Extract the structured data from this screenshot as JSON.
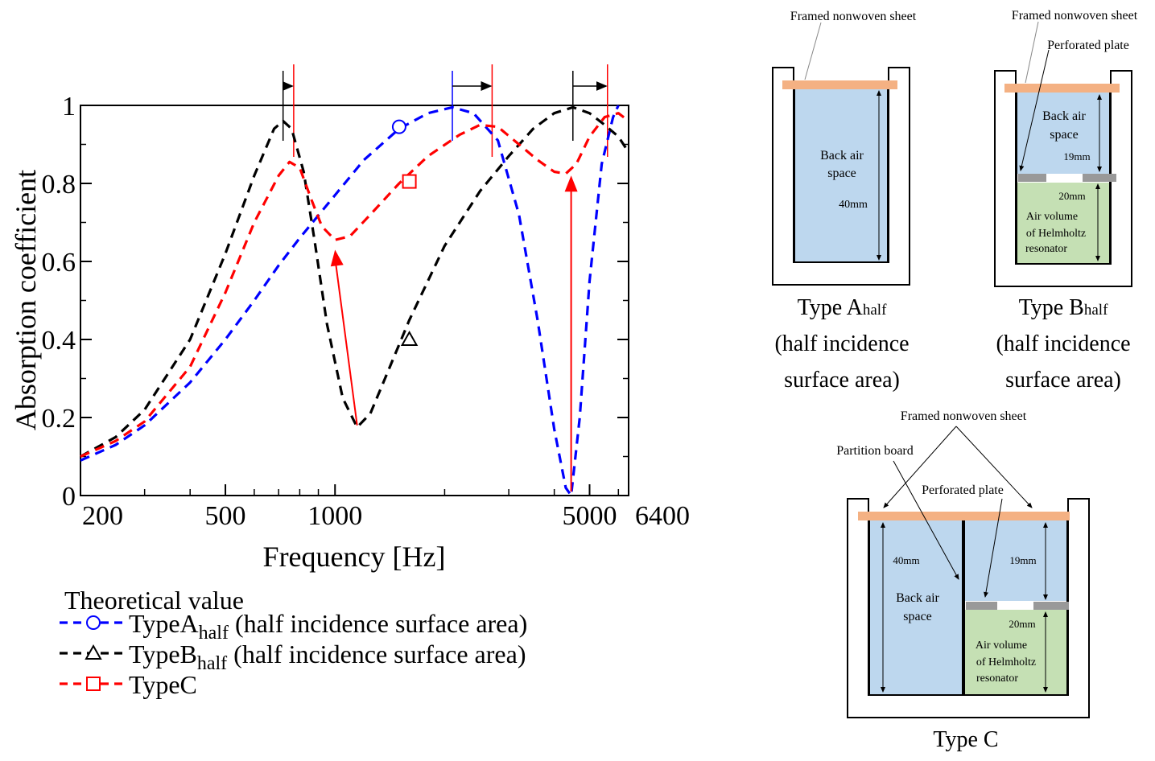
{
  "chart_data": {
    "type": "line",
    "xscale": "log",
    "xlabel": "Frequency [Hz]",
    "ylabel": "Absorption coefficient",
    "xlim": [
      200,
      6400
    ],
    "ylim": [
      0,
      1
    ],
    "xticks": [
      200,
      500,
      1000,
      5000,
      6400
    ],
    "yticks": [
      0,
      0.2,
      0.4,
      0.6,
      0.8,
      1
    ],
    "ytick_labels": [
      "0",
      "0.2",
      "0.4",
      "0.6",
      "0.8",
      "1"
    ],
    "legend_title": "Theoretical value",
    "series": [
      {
        "name_main": "TypeA",
        "name_sub": "half",
        "name_rest": " (half incidence surface area)",
        "color": "#0000ff",
        "marker": "circle",
        "points": [
          [
            200,
            0.09
          ],
          [
            250,
            0.13
          ],
          [
            300,
            0.18
          ],
          [
            400,
            0.29
          ],
          [
            500,
            0.4
          ],
          [
            600,
            0.5
          ],
          [
            700,
            0.59
          ],
          [
            800,
            0.66
          ],
          [
            1000,
            0.77
          ],
          [
            1200,
            0.86
          ],
          [
            1500,
            0.94
          ],
          [
            1800,
            0.98
          ],
          [
            2100,
            0.995
          ],
          [
            2400,
            0.98
          ],
          [
            2800,
            0.91
          ],
          [
            3200,
            0.72
          ],
          [
            3600,
            0.45
          ],
          [
            4000,
            0.17
          ],
          [
            4300,
            0.02
          ],
          [
            4450,
            0.0
          ],
          [
            4700,
            0.2
          ],
          [
            5000,
            0.55
          ],
          [
            5400,
            0.85
          ],
          [
            5800,
            0.97
          ],
          [
            6000,
            1.0
          ]
        ],
        "marker_points": [
          [
            1500,
            0.945
          ]
        ]
      },
      {
        "name_main": "TypeB",
        "name_sub": "half",
        "name_rest": " (half incidence surface area)",
        "color": "#000000",
        "marker": "triangle",
        "points": [
          [
            200,
            0.1
          ],
          [
            250,
            0.15
          ],
          [
            300,
            0.22
          ],
          [
            400,
            0.4
          ],
          [
            500,
            0.62
          ],
          [
            600,
            0.82
          ],
          [
            680,
            0.94
          ],
          [
            720,
            0.96
          ],
          [
            760,
            0.94
          ],
          [
            820,
            0.83
          ],
          [
            880,
            0.65
          ],
          [
            950,
            0.44
          ],
          [
            1050,
            0.25
          ],
          [
            1150,
            0.175
          ],
          [
            1250,
            0.21
          ],
          [
            1400,
            0.32
          ],
          [
            1600,
            0.45
          ],
          [
            2000,
            0.64
          ],
          [
            2500,
            0.78
          ],
          [
            3000,
            0.87
          ],
          [
            3500,
            0.94
          ],
          [
            4000,
            0.98
          ],
          [
            4500,
            0.995
          ],
          [
            5000,
            0.98
          ],
          [
            5500,
            0.95
          ],
          [
            6000,
            0.92
          ],
          [
            6400,
            0.88
          ]
        ],
        "marker_points": [
          [
            1600,
            0.4
          ]
        ]
      },
      {
        "name_main": "TypeC",
        "name_sub": "",
        "name_rest": "",
        "color": "#ff0000",
        "marker": "square",
        "points": [
          [
            200,
            0.1
          ],
          [
            250,
            0.14
          ],
          [
            300,
            0.19
          ],
          [
            400,
            0.33
          ],
          [
            500,
            0.52
          ],
          [
            600,
            0.7
          ],
          [
            700,
            0.82
          ],
          [
            750,
            0.855
          ],
          [
            800,
            0.84
          ],
          [
            860,
            0.76
          ],
          [
            920,
            0.69
          ],
          [
            1000,
            0.655
          ],
          [
            1100,
            0.665
          ],
          [
            1250,
            0.72
          ],
          [
            1500,
            0.8
          ],
          [
            1800,
            0.87
          ],
          [
            2200,
            0.925
          ],
          [
            2500,
            0.95
          ],
          [
            2800,
            0.945
          ],
          [
            3200,
            0.9
          ],
          [
            3600,
            0.86
          ],
          [
            4000,
            0.83
          ],
          [
            4300,
            0.825
          ],
          [
            4600,
            0.85
          ],
          [
            5000,
            0.92
          ],
          [
            5500,
            0.97
          ],
          [
            6000,
            0.98
          ],
          [
            6400,
            0.96
          ]
        ],
        "marker_points": [
          [
            1600,
            0.805
          ]
        ]
      }
    ],
    "arrows": [
      {
        "from": [
          1150,
          0.18
        ],
        "to": [
          1000,
          0.63
        ],
        "color": "#ff0000"
      },
      {
        "from": [
          4450,
          0.01
        ],
        "to": [
          4450,
          0.82
        ],
        "color": "#ff0000"
      }
    ],
    "shift_markers": [
      {
        "black_x": 720,
        "red_x": 770,
        "black_color": "#000000",
        "red_color": "#ff0000"
      },
      {
        "black_x": 2100,
        "red_x": 2700,
        "black_color": "#0000ff",
        "red_color": "#ff0000"
      },
      {
        "black_x": 4500,
        "red_x": 5600,
        "black_color": "#000000",
        "red_color": "#ff0000"
      }
    ]
  },
  "diagrams": {
    "colors": {
      "sheet": "#f4b183",
      "air": "#bdd7ee",
      "helmholtz": "#c5e0b4",
      "plate": "#999999"
    },
    "type_a": {
      "sheet_label": "Framed nonwoven sheet",
      "air_label_1": "Back air",
      "air_label_2": "space",
      "depth": "40mm",
      "caption_main": "Type A",
      "caption_sub": "half",
      "caption_line2": "(half incidence",
      "caption_line3": "surface area)"
    },
    "type_b": {
      "sheet_label": "Framed nonwoven sheet",
      "plate_label": "Perforated plate",
      "air_label_1": "Back air",
      "air_label_2": "space",
      "depth_top": "19mm",
      "depth_bottom": "20mm",
      "hv_1": "Air volume",
      "hv_2": "of Helmholtz",
      "hv_3": "resonator",
      "caption_main": "Type B",
      "caption_sub": "half",
      "caption_line2": "(half incidence",
      "caption_line3": "surface area)"
    },
    "type_c": {
      "sheet_label": "Framed nonwoven sheet",
      "partition_label": "Partition board",
      "plate_label": "Perforated plate",
      "depth_left": "40mm",
      "air_label_1": "Back air",
      "air_label_2": "space",
      "depth_top": "19mm",
      "depth_bottom": "20mm",
      "hv_1": "Air volume",
      "hv_2": "of Helmholtz",
      "hv_3": "resonator",
      "caption": "Type C"
    }
  }
}
